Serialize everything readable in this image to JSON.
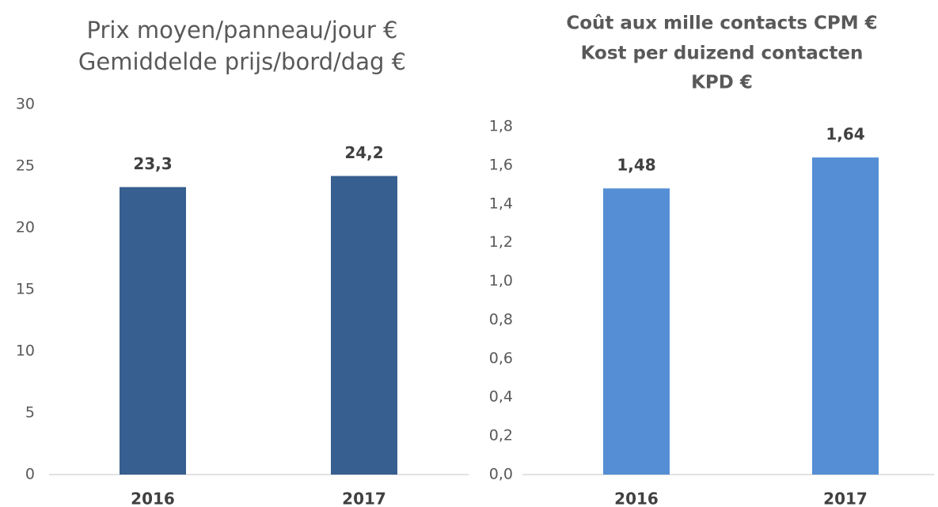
{
  "chart_data": [
    {
      "type": "bar",
      "title": [
        "Prix moyen/panneau/jour €",
        "Gemiddelde prijs/bord/dag €"
      ],
      "categories": [
        "2016",
        "2017"
      ],
      "values": [
        23.3,
        24.2
      ],
      "value_labels": [
        "23,3",
        "24,2"
      ],
      "color": "#375f8f",
      "ylim": [
        0,
        30
      ],
      "yticks": [
        0,
        5,
        10,
        15,
        20,
        25,
        30
      ],
      "grid": false
    },
    {
      "type": "bar",
      "title": [
        "Coût aux mille contacts CPM €",
        "Kost per duizend contacten",
        "KPD €"
      ],
      "categories": [
        "2016",
        "2017"
      ],
      "values": [
        1.48,
        1.64
      ],
      "value_labels": [
        "1,48",
        "1,64"
      ],
      "color": "#558ed5",
      "ylim": [
        0,
        1.8
      ],
      "yticks": [
        {
          "value": 0,
          "label": "0,0"
        },
        {
          "value": 0.2,
          "label": "0,2"
        },
        {
          "value": 0.4,
          "label": "0,4"
        },
        {
          "value": 0.6,
          "label": "0,6"
        },
        {
          "value": 0.8,
          "label": "0,8"
        },
        {
          "value": 1.0,
          "label": "1,0"
        },
        {
          "value": 1.2,
          "label": "1,2"
        },
        {
          "value": 1.4,
          "label": "1,4"
        },
        {
          "value": 1.6,
          "label": "1,6"
        },
        {
          "value": 1.8,
          "label": "1,8"
        }
      ],
      "grid": false
    }
  ]
}
